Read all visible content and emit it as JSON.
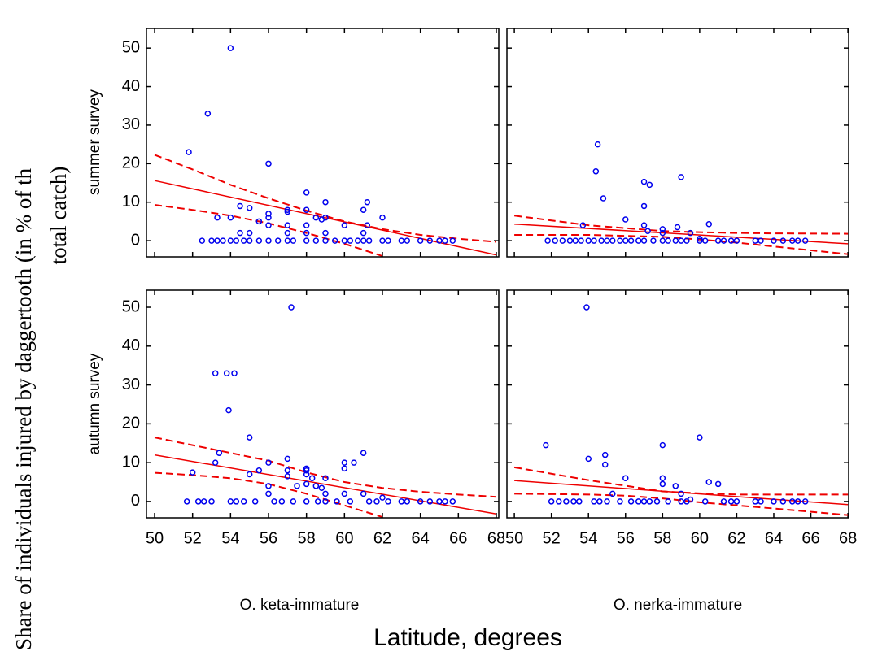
{
  "y_label_lines": [
    "Share of individuals injured by daggertooth (in % of th",
    "total catch)"
  ],
  "x_label": "Latitude, degrees",
  "row_labels": [
    "summer survey",
    "autumn survey"
  ],
  "column_labels": [
    "O. keta-immature",
    "O. nerka-immature"
  ],
  "chart_data": [
    {
      "type": "scatter",
      "color": "#0000ee",
      "line_color": "#ee0000",
      "xlim": [
        49.57,
        68.13
      ],
      "ylim": [
        -4.2,
        55.1
      ],
      "xticks": [
        50,
        52,
        54,
        56,
        58,
        60,
        62,
        64,
        66,
        68
      ],
      "yticks": [
        0,
        10,
        20,
        30,
        40,
        50
      ],
      "x": [
        51.8,
        52.8,
        54,
        53.3,
        54,
        54.5,
        54.5,
        55,
        55,
        55.5,
        56,
        56,
        56,
        56,
        57,
        57,
        57,
        57,
        58,
        58,
        58,
        58,
        58.5,
        58.8,
        59,
        59,
        59,
        60,
        61,
        61.2,
        61.2,
        62,
        61,
        52.5,
        53,
        53.3,
        53.6,
        54,
        54.3,
        54.7,
        55,
        55.5,
        56,
        56.5,
        57,
        57.3,
        58,
        58.5,
        59,
        59.5,
        60,
        60.3,
        60.7,
        61,
        61.3,
        62,
        62.3,
        63,
        63.3,
        64,
        64.5,
        65,
        65.3,
        65.7
      ],
      "values": [
        23,
        33,
        50,
        6,
        6,
        9,
        2,
        8.5,
        2,
        5,
        20,
        7,
        6,
        4,
        8,
        7.5,
        4,
        2,
        12.5,
        8,
        4,
        2,
        6,
        5.5,
        10,
        6,
        2,
        4,
        8,
        10,
        4,
        6,
        2,
        0,
        0,
        0,
        0,
        0,
        0,
        0,
        0,
        0,
        0,
        0,
        0,
        0,
        0,
        0,
        0,
        0,
        0,
        0,
        0,
        0,
        0,
        0,
        0,
        0,
        0,
        0,
        0,
        0,
        0,
        0
      ],
      "fit": {
        "x": [
          50,
          68
        ],
        "values": [
          15.6,
          -3.7
        ]
      },
      "upper": {
        "x": [
          50,
          52,
          54,
          56,
          58,
          60,
          62,
          64,
          66,
          68
        ],
        "values": [
          22.3,
          18.5,
          14.5,
          11,
          7.8,
          5,
          3,
          1.5,
          0.5,
          -0.3
        ]
      },
      "lower": {
        "x": [
          50,
          52,
          54,
          56,
          58,
          60,
          62
        ],
        "values": [
          9.3,
          8,
          6.5,
          4.5,
          2,
          -0.8,
          -4
        ]
      }
    },
    {
      "type": "scatter",
      "color": "#0000ee",
      "line_color": "#ee0000",
      "xlim": [
        49.6,
        68.04
      ],
      "ylim": [
        -4.2,
        55.1
      ],
      "xticks": [
        50,
        52,
        54,
        56,
        58,
        60,
        62,
        64,
        66,
        68
      ],
      "yticks": [
        0,
        10,
        20,
        30,
        40,
        50
      ],
      "x": [
        54.5,
        54.4,
        54.8,
        53.7,
        56,
        57,
        57.3,
        57,
        57,
        57.2,
        58,
        58,
        58.8,
        59,
        59.5,
        60.5,
        60,
        51.8,
        52.2,
        52.6,
        53,
        53.3,
        53.6,
        54,
        54.3,
        54.7,
        55,
        55.3,
        55.7,
        56,
        56.3,
        56.7,
        57,
        57.5,
        58,
        58.3,
        58.7,
        59,
        59.3,
        60,
        60.3,
        61,
        61.3,
        61.7,
        62,
        63,
        63.3,
        64,
        64.5,
        65,
        65.3,
        65.7
      ],
      "values": [
        25,
        18,
        11,
        4,
        5.5,
        15.3,
        14.5,
        9,
        4,
        2.5,
        3,
        2,
        3.5,
        16.5,
        2,
        4.3,
        0.5,
        0,
        0,
        0,
        0,
        0,
        0,
        0,
        0,
        0,
        0,
        0,
        0,
        0,
        0,
        0,
        0,
        0,
        0,
        0,
        0,
        0,
        0,
        0,
        0,
        0,
        0,
        0,
        0,
        0,
        0,
        0,
        0,
        0,
        0,
        0
      ],
      "fit": {
        "x": [
          50,
          68
        ],
        "values": [
          4.3,
          -0.8
        ]
      },
      "upper": {
        "x": [
          50,
          54,
          58,
          60,
          62,
          64,
          68
        ],
        "values": [
          6.5,
          4,
          2.5,
          2.2,
          2,
          1.9,
          1.8
        ]
      },
      "lower": {
        "x": [
          50,
          54,
          58,
          60,
          62,
          64,
          68
        ],
        "values": [
          1.5,
          1.5,
          1,
          0.3,
          -0.5,
          -1.5,
          -3.5
        ]
      }
    },
    {
      "type": "scatter",
      "color": "#0000ee",
      "line_color": "#ee0000",
      "xlim": [
        49.57,
        68.13
      ],
      "ylim": [
        -4.2,
        54.4
      ],
      "xticks": [
        50,
        52,
        54,
        56,
        58,
        60,
        62,
        64,
        66,
        68
      ],
      "yticks": [
        0,
        10,
        20,
        30,
        40,
        50
      ],
      "x": [
        52,
        53.2,
        53.8,
        54.2,
        53.4,
        53.9,
        53.2,
        55,
        55,
        55.5,
        56,
        56,
        56,
        57,
        57,
        57,
        57.2,
        57.5,
        58,
        58,
        58,
        58,
        58.3,
        58.5,
        58.8,
        59,
        59,
        60,
        60,
        60,
        60.5,
        61,
        61,
        62,
        51.7,
        52.3,
        52.6,
        53,
        54,
        54.3,
        54.7,
        55.3,
        56.3,
        56.7,
        57.3,
        58,
        58.6,
        59,
        59.6,
        60.3,
        61.3,
        61.7,
        62.3,
        63,
        63.3,
        64,
        64.5,
        65,
        65.3,
        65.7
      ],
      "values": [
        7.5,
        33,
        33,
        33,
        12.5,
        23.5,
        10,
        16.5,
        7,
        8,
        10,
        4,
        2,
        11,
        8,
        6.5,
        50,
        4,
        8.5,
        8,
        7,
        4.5,
        6,
        4,
        3.5,
        6,
        2,
        10,
        8.5,
        2,
        10,
        12.5,
        2,
        1,
        0,
        0,
        0,
        0,
        0,
        0,
        0,
        0,
        0,
        0,
        0,
        0,
        0,
        0,
        0,
        0,
        0,
        0,
        0,
        0,
        0,
        0,
        0,
        0,
        0,
        0
      ],
      "fit": {
        "x": [
          50,
          68
        ],
        "values": [
          12,
          -3.2
        ]
      },
      "upper": {
        "x": [
          50,
          52,
          54,
          56,
          58,
          60,
          62,
          64,
          66,
          68
        ],
        "values": [
          16.5,
          14.5,
          12.5,
          10.5,
          7.5,
          5,
          3.5,
          2.5,
          1.8,
          1.2
        ]
      },
      "lower": {
        "x": [
          50,
          52,
          54,
          56,
          58,
          60,
          62
        ],
        "values": [
          7.4,
          6.8,
          6,
          4.5,
          2,
          -1,
          -4
        ]
      }
    },
    {
      "type": "scatter",
      "color": "#0000ee",
      "line_color": "#ee0000",
      "xlim": [
        49.6,
        68.04
      ],
      "ylim": [
        -4.2,
        54.4
      ],
      "xticks": [
        50,
        52,
        54,
        56,
        58,
        60,
        62,
        64,
        66,
        68
      ],
      "yticks": [
        0,
        10,
        20,
        30,
        40,
        50
      ],
      "x": [
        51.7,
        53.9,
        54,
        54.9,
        54.9,
        55.3,
        56,
        58,
        58,
        58,
        58.7,
        59,
        60,
        60.5,
        61,
        59.5,
        52,
        52.4,
        52.8,
        53.2,
        53.5,
        54.3,
        54.6,
        55,
        55.7,
        56.3,
        56.7,
        57,
        57.3,
        57.7,
        58.3,
        59,
        59.3,
        60.3,
        61.3,
        61.7,
        62,
        63,
        63.3,
        64,
        64.5,
        65,
        65.3,
        65.7
      ],
      "values": [
        14.5,
        50,
        11,
        12,
        9.5,
        2,
        6,
        14.5,
        6,
        4.5,
        4,
        2,
        16.5,
        5,
        4.5,
        0.5,
        0,
        0,
        0,
        0,
        0,
        0,
        0,
        0,
        0,
        0,
        0,
        0,
        0,
        0,
        0,
        0,
        0,
        0,
        0,
        0,
        0,
        0,
        0,
        0,
        0,
        0,
        0,
        0
      ],
      "fit": {
        "x": [
          50,
          68
        ],
        "values": [
          5.4,
          -0.8
        ]
      },
      "upper": {
        "x": [
          50,
          54,
          58,
          60,
          62,
          64,
          68
        ],
        "values": [
          8.8,
          5.5,
          2.6,
          2.1,
          1.8,
          1.8,
          1.8
        ]
      },
      "lower": {
        "x": [
          50,
          54,
          56,
          58,
          60,
          64,
          68
        ],
        "values": [
          2,
          1.8,
          1.5,
          0.8,
          -0.2,
          -1.8,
          -3.5
        ]
      }
    }
  ]
}
